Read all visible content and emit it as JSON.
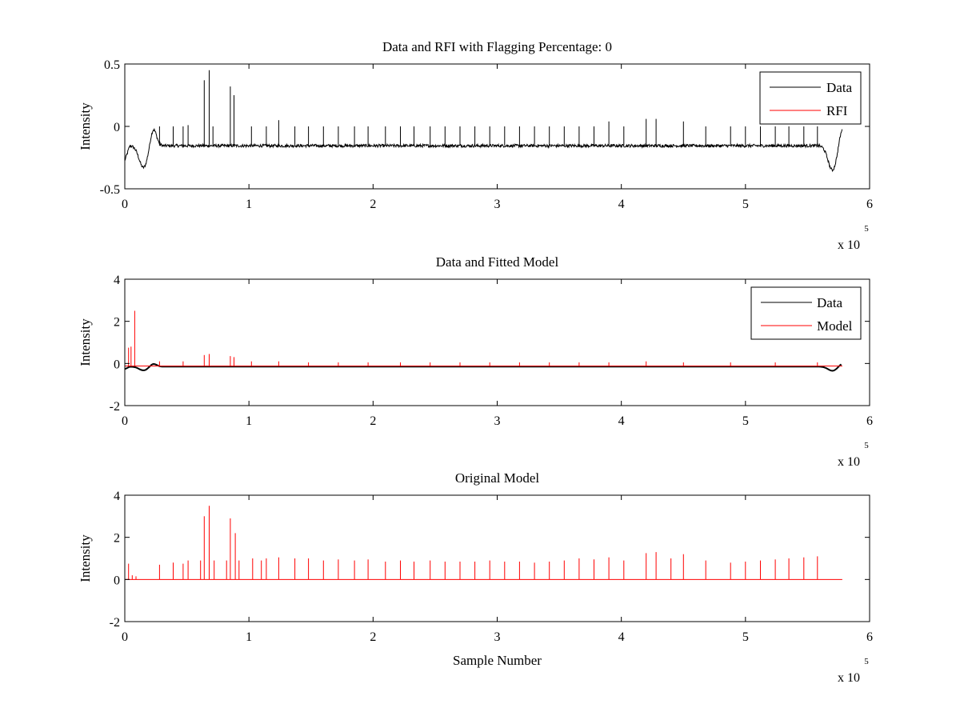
{
  "colors": {
    "data": "#000000",
    "rfi": "#ff0000",
    "axes": "#000000",
    "background": "#ffffff"
  },
  "chart_data": [
    {
      "type": "line",
      "title": "Data and RFI with Flagging Percentage: 0",
      "xlabel": "",
      "ylabel": "Intensity",
      "xlim": [
        0,
        600000
      ],
      "ylim": [
        -0.5,
        0.5
      ],
      "xticks": [
        0,
        100000,
        200000,
        300000,
        400000,
        500000,
        600000
      ],
      "xticklabels": [
        "0",
        "1",
        "2",
        "3",
        "4",
        "5",
        "6"
      ],
      "yticks": [
        -0.5,
        0,
        0.5
      ],
      "yticklabels": [
        "-0.5",
        "0",
        "0.5"
      ],
      "x_multiplier_label": {
        "base": "x 10",
        "exponent": "5"
      },
      "legend": {
        "position": "top-right",
        "entries": [
          "Data",
          "RFI"
        ]
      },
      "grid": false,
      "series": [
        {
          "name": "Data",
          "color": "#000000",
          "kind": "noisy-baseline",
          "x_end": 578000,
          "baseline": -0.155,
          "noise": 0.012,
          "edge_dips": [
            {
              "x": 15000,
              "y": -0.33
            },
            {
              "x": 570000,
              "y": -0.35
            }
          ],
          "spikes": [
            {
              "x": 28000,
              "y": 0.0
            },
            {
              "x": 39000,
              "y": 0.0
            },
            {
              "x": 47000,
              "y": 0.0
            },
            {
              "x": 51000,
              "y": 0.01
            },
            {
              "x": 64000,
              "y": 0.37
            },
            {
              "x": 68000,
              "y": 0.45
            },
            {
              "x": 71000,
              "y": 0.0
            },
            {
              "x": 85000,
              "y": 0.32
            },
            {
              "x": 88000,
              "y": 0.25
            },
            {
              "x": 102000,
              "y": 0.0
            },
            {
              "x": 114000,
              "y": 0.0
            },
            {
              "x": 124000,
              "y": 0.05
            },
            {
              "x": 137000,
              "y": 0.0
            },
            {
              "x": 148000,
              "y": 0.0
            },
            {
              "x": 160000,
              "y": 0.0
            },
            {
              "x": 172000,
              "y": 0.0
            },
            {
              "x": 185000,
              "y": 0.0
            },
            {
              "x": 196000,
              "y": 0.0
            },
            {
              "x": 210000,
              "y": 0.0
            },
            {
              "x": 222000,
              "y": 0.0
            },
            {
              "x": 233000,
              "y": 0.0
            },
            {
              "x": 246000,
              "y": 0.0
            },
            {
              "x": 258000,
              "y": 0.0
            },
            {
              "x": 270000,
              "y": 0.0
            },
            {
              "x": 282000,
              "y": 0.0
            },
            {
              "x": 294000,
              "y": 0.0
            },
            {
              "x": 306000,
              "y": 0.0
            },
            {
              "x": 318000,
              "y": 0.0
            },
            {
              "x": 330000,
              "y": 0.0
            },
            {
              "x": 342000,
              "y": 0.0
            },
            {
              "x": 354000,
              "y": 0.0
            },
            {
              "x": 366000,
              "y": 0.0
            },
            {
              "x": 378000,
              "y": 0.0
            },
            {
              "x": 390000,
              "y": 0.04
            },
            {
              "x": 402000,
              "y": 0.0
            },
            {
              "x": 420000,
              "y": 0.06
            },
            {
              "x": 428000,
              "y": 0.06
            },
            {
              "x": 450000,
              "y": 0.04
            },
            {
              "x": 468000,
              "y": 0.0
            },
            {
              "x": 488000,
              "y": 0.0
            },
            {
              "x": 500000,
              "y": 0.0
            },
            {
              "x": 512000,
              "y": 0.0
            },
            {
              "x": 524000,
              "y": 0.0
            },
            {
              "x": 535000,
              "y": 0.0
            },
            {
              "x": 547000,
              "y": 0.0
            },
            {
              "x": 558000,
              "y": 0.0
            }
          ]
        },
        {
          "name": "RFI",
          "color": "#ff0000",
          "kind": "none"
        }
      ]
    },
    {
      "type": "line",
      "title": "Data and Fitted Model",
      "xlabel": "",
      "ylabel": "Intensity",
      "xlim": [
        0,
        600000
      ],
      "ylim": [
        -2,
        4
      ],
      "xticks": [
        0,
        100000,
        200000,
        300000,
        400000,
        500000,
        600000
      ],
      "xticklabels": [
        "0",
        "1",
        "2",
        "3",
        "4",
        "5",
        "6"
      ],
      "yticks": [
        -2,
        0,
        2,
        4
      ],
      "yticklabels": [
        "-2",
        "0",
        "2",
        "4"
      ],
      "x_multiplier_label": {
        "base": "x 10",
        "exponent": "5"
      },
      "legend": {
        "position": "top-right",
        "entries": [
          "Data",
          "Model"
        ]
      },
      "grid": false,
      "series": [
        {
          "name": "Data",
          "color": "#000000",
          "kind": "smooth-baseline",
          "x_end": 578000,
          "baseline": -0.15,
          "edge_dips": [
            {
              "x": 15000,
              "y": -0.33
            },
            {
              "x": 570000,
              "y": -0.35
            }
          ]
        },
        {
          "name": "Model",
          "color": "#ff0000",
          "kind": "spikes",
          "x_end": 578000,
          "baseline": -0.12,
          "spikes": [
            {
              "x": 3000,
              "y": 0.75
            },
            {
              "x": 5000,
              "y": 0.8
            },
            {
              "x": 8000,
              "y": 2.5
            },
            {
              "x": 28000,
              "y": 0.1
            },
            {
              "x": 47000,
              "y": 0.1
            },
            {
              "x": 64000,
              "y": 0.4
            },
            {
              "x": 68000,
              "y": 0.45
            },
            {
              "x": 85000,
              "y": 0.35
            },
            {
              "x": 88000,
              "y": 0.3
            },
            {
              "x": 102000,
              "y": 0.1
            },
            {
              "x": 124000,
              "y": 0.1
            },
            {
              "x": 148000,
              "y": 0.05
            },
            {
              "x": 172000,
              "y": 0.05
            },
            {
              "x": 196000,
              "y": 0.05
            },
            {
              "x": 222000,
              "y": 0.05
            },
            {
              "x": 246000,
              "y": 0.05
            },
            {
              "x": 270000,
              "y": 0.05
            },
            {
              "x": 294000,
              "y": 0.05
            },
            {
              "x": 318000,
              "y": 0.05
            },
            {
              "x": 342000,
              "y": 0.05
            },
            {
              "x": 366000,
              "y": 0.05
            },
            {
              "x": 390000,
              "y": 0.05
            },
            {
              "x": 420000,
              "y": 0.1
            },
            {
              "x": 450000,
              "y": 0.05
            },
            {
              "x": 488000,
              "y": 0.05
            },
            {
              "x": 524000,
              "y": 0.05
            },
            {
              "x": 558000,
              "y": 0.05
            }
          ]
        }
      ]
    },
    {
      "type": "line",
      "title": "Original Model",
      "xlabel": "Sample Number",
      "ylabel": "Intensity",
      "xlim": [
        0,
        600000
      ],
      "ylim": [
        -2,
        4
      ],
      "xticks": [
        0,
        100000,
        200000,
        300000,
        400000,
        500000,
        600000
      ],
      "xticklabels": [
        "0",
        "1",
        "2",
        "3",
        "4",
        "5",
        "6"
      ],
      "yticks": [
        -2,
        0,
        2,
        4
      ],
      "yticklabels": [
        "-2",
        "0",
        "2",
        "4"
      ],
      "x_multiplier_label": {
        "base": "x 10",
        "exponent": "5"
      },
      "legend": null,
      "grid": false,
      "series": [
        {
          "color": "#ff0000",
          "kind": "spikes",
          "x_end": 578000,
          "baseline": 0.0,
          "spikes": [
            {
              "x": 3000,
              "y": 0.75
            },
            {
              "x": 6000,
              "y": 0.2
            },
            {
              "x": 9000,
              "y": 0.15
            },
            {
              "x": 28000,
              "y": 0.7
            },
            {
              "x": 39000,
              "y": 0.8
            },
            {
              "x": 47000,
              "y": 0.75
            },
            {
              "x": 51000,
              "y": 0.9
            },
            {
              "x": 61000,
              "y": 0.9
            },
            {
              "x": 64000,
              "y": 3.0
            },
            {
              "x": 68000,
              "y": 3.5
            },
            {
              "x": 72000,
              "y": 0.9
            },
            {
              "x": 82000,
              "y": 0.9
            },
            {
              "x": 85000,
              "y": 2.9
            },
            {
              "x": 89000,
              "y": 2.2
            },
            {
              "x": 92000,
              "y": 0.9
            },
            {
              "x": 103000,
              "y": 1.0
            },
            {
              "x": 110000,
              "y": 0.9
            },
            {
              "x": 114000,
              "y": 1.0
            },
            {
              "x": 124000,
              "y": 1.05
            },
            {
              "x": 137000,
              "y": 1.0
            },
            {
              "x": 148000,
              "y": 1.0
            },
            {
              "x": 160000,
              "y": 0.9
            },
            {
              "x": 172000,
              "y": 0.95
            },
            {
              "x": 185000,
              "y": 0.9
            },
            {
              "x": 196000,
              "y": 0.95
            },
            {
              "x": 210000,
              "y": 0.85
            },
            {
              "x": 222000,
              "y": 0.9
            },
            {
              "x": 233000,
              "y": 0.85
            },
            {
              "x": 246000,
              "y": 0.9
            },
            {
              "x": 258000,
              "y": 0.85
            },
            {
              "x": 270000,
              "y": 0.85
            },
            {
              "x": 282000,
              "y": 0.85
            },
            {
              "x": 294000,
              "y": 0.9
            },
            {
              "x": 306000,
              "y": 0.85
            },
            {
              "x": 318000,
              "y": 0.85
            },
            {
              "x": 330000,
              "y": 0.8
            },
            {
              "x": 342000,
              "y": 0.85
            },
            {
              "x": 354000,
              "y": 0.9
            },
            {
              "x": 366000,
              "y": 1.0
            },
            {
              "x": 378000,
              "y": 0.95
            },
            {
              "x": 390000,
              "y": 1.05
            },
            {
              "x": 402000,
              "y": 0.9
            },
            {
              "x": 420000,
              "y": 1.25
            },
            {
              "x": 428000,
              "y": 1.3
            },
            {
              "x": 440000,
              "y": 1.0
            },
            {
              "x": 450000,
              "y": 1.2
            },
            {
              "x": 468000,
              "y": 0.9
            },
            {
              "x": 488000,
              "y": 0.8
            },
            {
              "x": 500000,
              "y": 0.85
            },
            {
              "x": 512000,
              "y": 0.9
            },
            {
              "x": 524000,
              "y": 0.95
            },
            {
              "x": 535000,
              "y": 1.0
            },
            {
              "x": 547000,
              "y": 1.05
            },
            {
              "x": 558000,
              "y": 1.1
            }
          ]
        }
      ]
    }
  ]
}
